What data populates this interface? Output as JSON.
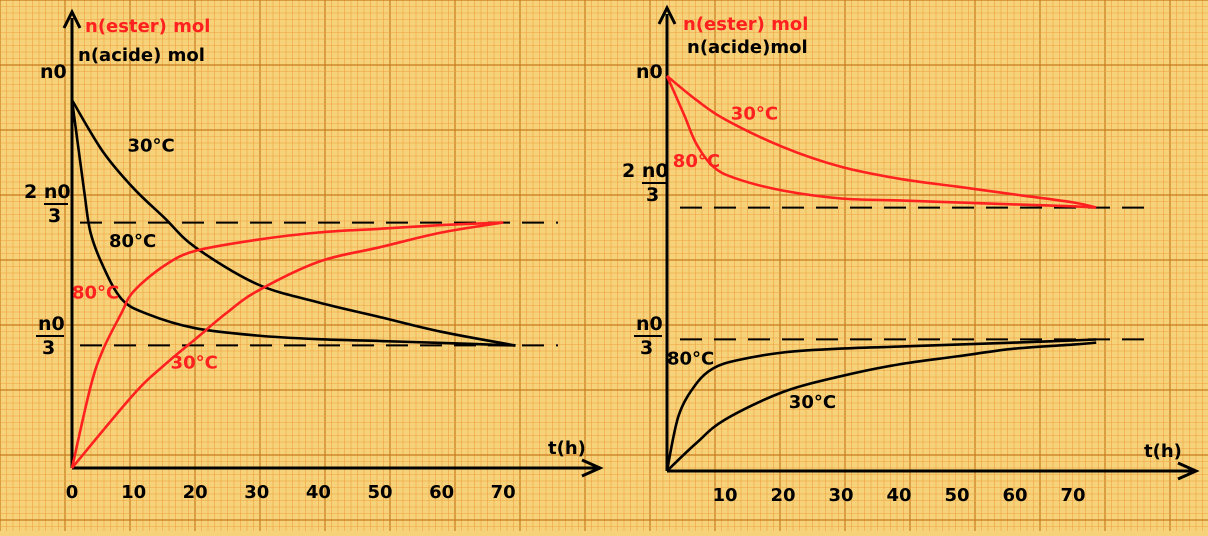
{
  "colors": {
    "paper": "#f6d37a",
    "grid_minor": "#f0a040",
    "grid_major": "#c87a1e",
    "red": "#ff2020",
    "black": "#000000"
  },
  "chart_data": [
    {
      "type": "line",
      "panel": "left",
      "ylabel_red": "n(ester) mol",
      "ylabel_black": "n(acide)  mol",
      "xlabel": "t(h)",
      "xlim": [
        0,
        80
      ],
      "ylim": [
        0,
        1
      ],
      "x_ticks": [
        "0",
        "10",
        "20",
        "30",
        "40",
        "50",
        "60",
        "70"
      ],
      "x_tick_values": [
        0,
        10,
        20,
        30,
        40,
        50,
        60,
        70
      ],
      "y_marks": {
        "n0": "n0",
        "two_thirds": {
          "num": "2 n0",
          "den": "3"
        },
        "one_third": {
          "num": "n0",
          "den": "3"
        }
      },
      "series": [
        {
          "name": "30°C",
          "color": "black",
          "x": [
            0,
            5,
            10,
            15,
            20,
            30,
            40,
            50,
            60,
            72
          ],
          "y": [
            1,
            0.86,
            0.76,
            0.68,
            0.6,
            0.5,
            0.45,
            0.41,
            0.37,
            0.333
          ]
        },
        {
          "name": "80°C",
          "color": "black",
          "x": [
            0,
            2,
            3,
            5,
            8,
            12,
            20,
            30,
            40,
            50,
            60,
            72
          ],
          "y": [
            1,
            0.75,
            0.64,
            0.55,
            0.46,
            0.42,
            0.38,
            0.36,
            0.35,
            0.345,
            0.34,
            0.333
          ]
        },
        {
          "name": "80°C",
          "color": "red",
          "x": [
            0,
            3,
            5,
            8,
            10,
            15,
            20,
            30,
            40,
            50,
            60,
            70
          ],
          "y": [
            0,
            0.22,
            0.32,
            0.42,
            0.48,
            0.55,
            0.59,
            0.62,
            0.64,
            0.65,
            0.66,
            0.667
          ]
        },
        {
          "name": "30°C",
          "color": "red",
          "x": [
            0,
            10,
            15,
            20,
            25,
            30,
            40,
            50,
            60,
            70
          ],
          "y": [
            0,
            0.2,
            0.28,
            0.35,
            0.42,
            0.48,
            0.56,
            0.6,
            0.64,
            0.667
          ]
        }
      ],
      "annotations": [
        {
          "text": "30°C",
          "color": "black",
          "x": 9,
          "y": 0.86
        },
        {
          "text": "80°C",
          "color": "black",
          "x": 6,
          "y": 0.6
        },
        {
          "text": "80°C",
          "color": "red",
          "x": 0,
          "y": 0.46
        },
        {
          "text": "30°C",
          "color": "red",
          "x": 16,
          "y": 0.27
        }
      ]
    },
    {
      "type": "line",
      "panel": "right",
      "ylabel_red": "n(ester) mol",
      "ylabel_black": "n(acide)mol",
      "xlabel": "t(h)",
      "xlim": [
        0,
        80
      ],
      "ylim": [
        0,
        1
      ],
      "x_ticks": [
        "10",
        "20",
        "30",
        "40",
        "50",
        "60",
        "70"
      ],
      "x_tick_values": [
        10,
        20,
        30,
        40,
        50,
        60,
        70
      ],
      "y_marks": {
        "n0": "n0",
        "two_thirds": {
          "num": "2 n0",
          "den": "3"
        },
        "one_third": {
          "num": "n0",
          "den": "3"
        }
      },
      "series": [
        {
          "name": "30°C",
          "color": "red",
          "x": [
            0,
            5,
            10,
            20,
            30,
            40,
            50,
            60,
            70,
            74
          ],
          "y": [
            1,
            0.94,
            0.89,
            0.82,
            0.77,
            0.74,
            0.72,
            0.7,
            0.68,
            0.667
          ]
        },
        {
          "name": "80°C",
          "color": "red",
          "x": [
            0,
            3,
            5,
            8,
            12,
            20,
            30,
            40,
            50,
            60,
            70,
            74
          ],
          "y": [
            1,
            0.9,
            0.83,
            0.77,
            0.74,
            0.71,
            0.69,
            0.685,
            0.68,
            0.675,
            0.67,
            0.667
          ]
        },
        {
          "name": "80°C",
          "color": "black",
          "x": [
            0,
            2,
            5,
            8,
            12,
            20,
            30,
            40,
            50,
            60,
            74
          ],
          "y": [
            0,
            0.14,
            0.22,
            0.26,
            0.28,
            0.3,
            0.31,
            0.315,
            0.32,
            0.325,
            0.333
          ]
        },
        {
          "name": "30°C",
          "color": "black",
          "x": [
            0,
            5,
            10,
            20,
            30,
            40,
            50,
            60,
            70,
            74
          ],
          "y": [
            0,
            0.07,
            0.13,
            0.2,
            0.24,
            0.27,
            0.29,
            0.31,
            0.32,
            0.325
          ]
        }
      ],
      "annotations": [
        {
          "text": "30°C",
          "color": "red",
          "x": 11,
          "y": 0.89
        },
        {
          "text": "80°C",
          "color": "red",
          "x": 1,
          "y": 0.77
        },
        {
          "text": "80°C",
          "color": "black",
          "x": 0,
          "y": 0.27
        },
        {
          "text": "30°C",
          "color": "black",
          "x": 21,
          "y": 0.16
        }
      ]
    }
  ]
}
